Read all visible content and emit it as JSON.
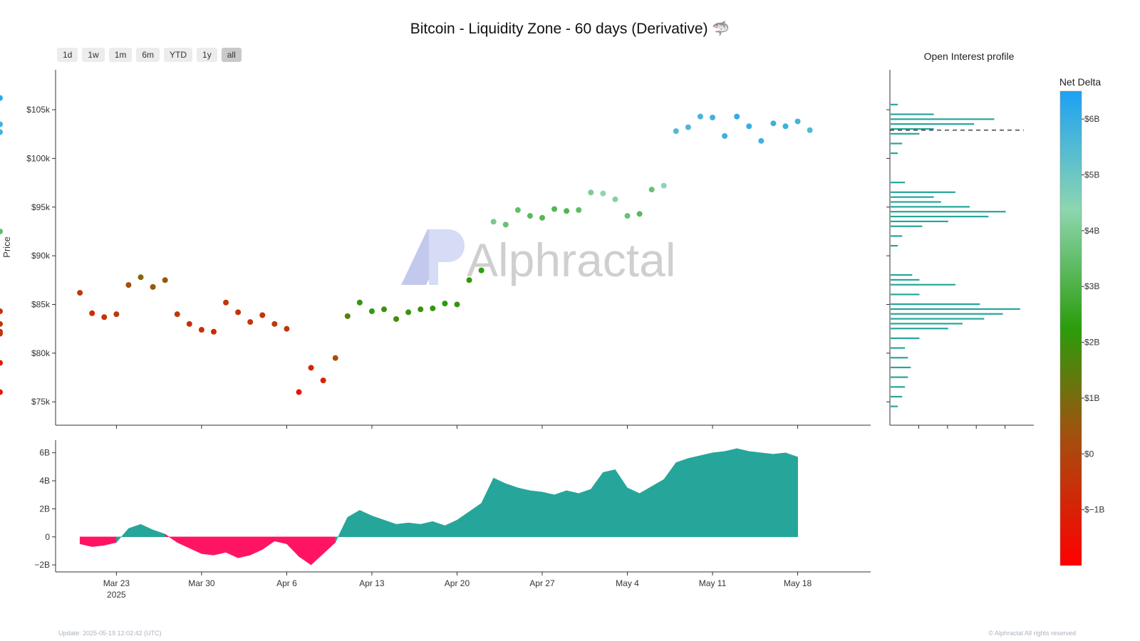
{
  "title": "Bitcoin - Liquidity Zone - 60 days (Derivative)",
  "title_icon": "shark-icon",
  "range_buttons": [
    "1d",
    "1w",
    "1m",
    "6m",
    "YTD",
    "1y",
    "all"
  ],
  "active_range": "all",
  "watermark": "Alphractal",
  "footer": {
    "update": "Update: 2025-05-19 12:02:42 (UTC)",
    "copyright": "© Alphractal All rights reserved"
  },
  "colors": {
    "price_line": "#111111",
    "oi_bar": "#26a69a",
    "delta_positive": "#26a69a",
    "delta_negative": "#ff1463",
    "colorscale": [
      "#ff0000",
      "#a0520f",
      "#2a9d0c",
      "#8dd6b0",
      "#1ea1f2"
    ]
  },
  "chart_data": [
    {
      "type": "scatter",
      "name": "price",
      "ylabel": "Price",
      "y_ticks": [
        "$75k",
        "$80k",
        "$85k",
        "$90k",
        "$95k",
        "$100k",
        "$105k"
      ],
      "y_tick_values": [
        75000,
        80000,
        85000,
        90000,
        95000,
        100000,
        105000
      ],
      "ylim": [
        72600,
        109100
      ],
      "xlim": [
        "2025-03-18",
        "2025-05-24"
      ],
      "x": [
        "2025-03-20",
        "2025-03-20T12",
        "2025-03-21",
        "2025-03-22",
        "2025-03-23",
        "2025-03-24",
        "2025-03-25",
        "2025-03-26",
        "2025-03-27",
        "2025-03-28",
        "2025-03-29",
        "2025-03-30",
        "2025-03-31",
        "2025-04-01",
        "2025-04-02",
        "2025-04-02T16",
        "2025-04-03",
        "2025-04-04",
        "2025-04-05",
        "2025-04-06",
        "2025-04-07",
        "2025-04-07T08",
        "2025-04-08",
        "2025-04-08T12",
        "2025-04-09",
        "2025-04-09T10",
        "2025-04-09T18",
        "2025-04-10",
        "2025-04-11",
        "2025-04-12",
        "2025-04-13",
        "2025-04-14",
        "2025-04-15",
        "2025-04-16",
        "2025-04-17",
        "2025-04-18",
        "2025-04-19",
        "2025-04-20",
        "2025-04-21",
        "2025-04-22",
        "2025-04-22T12",
        "2025-04-23",
        "2025-04-24",
        "2025-04-25",
        "2025-04-26",
        "2025-04-27",
        "2025-04-28",
        "2025-04-29",
        "2025-04-30",
        "2025-05-01",
        "2025-05-02",
        "2025-05-03",
        "2025-05-04",
        "2025-05-05",
        "2025-05-06",
        "2025-05-07",
        "2025-05-08",
        "2025-05-09",
        "2025-05-10",
        "2025-05-11",
        "2025-05-12",
        "2025-05-12T12",
        "2025-05-13",
        "2025-05-14",
        "2025-05-15",
        "2025-05-16",
        "2025-05-17",
        "2025-05-18",
        "2025-05-18T12",
        "2025-05-18T20",
        "2025-05-19"
      ],
      "y": [
        86200,
        84300,
        84100,
        83700,
        84000,
        87000,
        87800,
        86800,
        87500,
        84000,
        83000,
        82400,
        82200,
        85200,
        84200,
        82200,
        83200,
        83900,
        83000,
        82500,
        76000,
        79000,
        78500,
        76000,
        77200,
        83000,
        82000,
        79500,
        83800,
        85200,
        84300,
        84500,
        83500,
        84200,
        84500,
        84600,
        85100,
        85000,
        87500,
        88500,
        92500,
        93500,
        93200,
        94700,
        94100,
        93900,
        94800,
        94600,
        94700,
        96500,
        96400,
        95800,
        94100,
        94300,
        96800,
        97200,
        102800,
        103200,
        104300,
        104200,
        102300,
        102700,
        104300,
        103300,
        101800,
        103600,
        103300,
        103800,
        106200,
        103500,
        102900
      ],
      "net_delta": [
        -0.3,
        -0.5,
        -0.6,
        -0.5,
        -0.4,
        0.3,
        0.8,
        0.6,
        0.5,
        -0.2,
        -0.6,
        -0.7,
        -0.8,
        -0.4,
        -0.6,
        -0.8,
        -0.5,
        -0.5,
        -0.3,
        -0.4,
        -1.4,
        -1.2,
        -1.0,
        -1.3,
        -1.0,
        -0.5,
        -0.4,
        0.3,
        1.6,
        2.1,
        2.2,
        1.9,
        1.8,
        2.0,
        2.0,
        2.1,
        2.2,
        2.0,
        2.1,
        2.3,
        3.4,
        3.9,
        3.6,
        3.5,
        3.3,
        3.2,
        3.2,
        3.1,
        3.4,
        4.0,
        4.4,
        4.2,
        3.6,
        3.3,
        3.6,
        4.4,
        5.5,
        5.6,
        5.7,
        5.8,
        5.9,
        5.8,
        6.1,
        6.0,
        5.8,
        5.9,
        5.9,
        5.8,
        6.2,
        5.9,
        5.5
      ]
    },
    {
      "type": "area",
      "name": "net-delta",
      "y_ticks": [
        "−2B",
        "0",
        "2B",
        "4B",
        "6B"
      ],
      "y_tick_values": [
        -2,
        0,
        2,
        4,
        6
      ],
      "ylim": [
        -2.5,
        6.9
      ],
      "x_ticks": [
        "Mar 23",
        "Mar 30",
        "Apr 6",
        "Apr 13",
        "Apr 20",
        "Apr 27",
        "May 4",
        "May 11",
        "May 18"
      ],
      "x_tick_values": [
        "2025-03-23",
        "2025-03-30",
        "2025-04-06",
        "2025-04-13",
        "2025-04-20",
        "2025-04-27",
        "2025-05-04",
        "2025-05-11",
        "2025-05-18"
      ],
      "x_year_label": "2025",
      "x": [
        "2025-03-20",
        "2025-03-21",
        "2025-03-22",
        "2025-03-23",
        "2025-03-24",
        "2025-03-25",
        "2025-03-26",
        "2025-03-27",
        "2025-03-28",
        "2025-03-29",
        "2025-03-30",
        "2025-03-31",
        "2025-04-01",
        "2025-04-02",
        "2025-04-03",
        "2025-04-04",
        "2025-04-05",
        "2025-04-06",
        "2025-04-07",
        "2025-04-08",
        "2025-04-09",
        "2025-04-10",
        "2025-04-11",
        "2025-04-12",
        "2025-04-13",
        "2025-04-14",
        "2025-04-15",
        "2025-04-16",
        "2025-04-17",
        "2025-04-18",
        "2025-04-19",
        "2025-04-20",
        "2025-04-21",
        "2025-04-22",
        "2025-04-23",
        "2025-04-24",
        "2025-04-25",
        "2025-04-26",
        "2025-04-27",
        "2025-04-28",
        "2025-04-29",
        "2025-04-30",
        "2025-05-01",
        "2025-05-02",
        "2025-05-03",
        "2025-05-04",
        "2025-05-05",
        "2025-05-06",
        "2025-05-07",
        "2025-05-08",
        "2025-05-09",
        "2025-05-10",
        "2025-05-11",
        "2025-05-12",
        "2025-05-13",
        "2025-05-14",
        "2025-05-15",
        "2025-05-16",
        "2025-05-17",
        "2025-05-18",
        "2025-05-18T12",
        "2025-05-19"
      ],
      "values": [
        -0.5,
        -0.7,
        -0.6,
        -0.4,
        0.6,
        0.9,
        0.5,
        0.2,
        -0.4,
        -0.8,
        -1.2,
        -1.3,
        -1.1,
        -1.5,
        -1.3,
        -0.9,
        -0.3,
        -0.5,
        -1.4,
        -2.0,
        -1.2,
        -0.4,
        1.4,
        1.9,
        1.5,
        1.2,
        0.9,
        1.0,
        0.9,
        1.1,
        0.8,
        1.2,
        1.8,
        2.4,
        4.2,
        3.8,
        3.5,
        3.3,
        3.2,
        3.0,
        3.3,
        3.1,
        3.4,
        4.6,
        4.8,
        3.5,
        3.1,
        3.6,
        4.1,
        5.3,
        5.6,
        5.8,
        6.0,
        6.1,
        6.3,
        6.1,
        6.0,
        5.9,
        6.0,
        5.7,
        6.4,
        5.6
      ]
    },
    {
      "type": "bar",
      "name": "open-interest-profile",
      "title": "Open Interest profile",
      "orientation": "horizontal",
      "price_levels": [
        74500,
        75500,
        76500,
        77500,
        78500,
        79500,
        80500,
        81500,
        82500,
        83000,
        83500,
        84000,
        84500,
        85000,
        86000,
        87000,
        87500,
        88000,
        91000,
        92000,
        93000,
        93500,
        94000,
        94500,
        95000,
        95500,
        96000,
        96500,
        97500,
        100500,
        101500,
        102500,
        103000,
        103500,
        104000,
        104500,
        105500
      ],
      "values": [
        0.05,
        0.08,
        0.1,
        0.12,
        0.14,
        0.12,
        0.1,
        0.2,
        0.4,
        0.5,
        0.65,
        0.78,
        0.9,
        0.62,
        0.2,
        0.45,
        0.2,
        0.15,
        0.05,
        0.08,
        0.22,
        0.4,
        0.68,
        0.8,
        0.55,
        0.35,
        0.3,
        0.45,
        0.1,
        0.05,
        0.08,
        0.2,
        0.3,
        0.58,
        0.72,
        0.3,
        0.05
      ],
      "reference_price": 102900
    },
    {
      "type": "heatmap",
      "name": "net-delta-colorscale",
      "title": "Net Delta",
      "ticks": [
        "$−1B",
        "$0",
        "$1B",
        "$2B",
        "$3B",
        "$4B",
        "$5B",
        "$6B"
      ],
      "tick_values": [
        -1,
        0,
        1,
        2,
        3,
        4,
        5,
        6
      ],
      "range": [
        -2,
        6.5
      ]
    }
  ]
}
